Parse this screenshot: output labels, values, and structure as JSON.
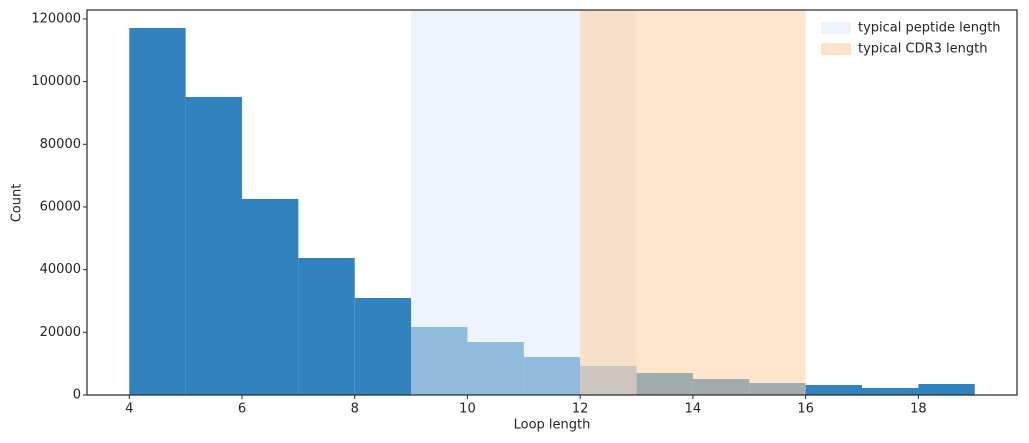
{
  "chart_data": {
    "type": "histogram",
    "xlabel": "Loop length",
    "ylabel": "Count",
    "bins": [
      4,
      5,
      6,
      7,
      8,
      9,
      10,
      11,
      12,
      13,
      14,
      15,
      16,
      17,
      18,
      19
    ],
    "values": [
      117100,
      95100,
      62560,
      43730,
      30960,
      21700,
      16900,
      12130,
      9260,
      7020,
      5100,
      3830,
      3190,
      2230,
      3510
    ],
    "color": "#3182bd",
    "spans": [
      {
        "name": "typical peptide length",
        "range": [
          9,
          13
        ],
        "color": "#deebf7"
      },
      {
        "name": "typical CDR3 length",
        "range": [
          12,
          16
        ],
        "color": "#fdd0a2"
      }
    ],
    "xlim": [
      3.25,
      19.75
    ],
    "ylim": [
      0,
      122850
    ],
    "xticks": [
      4,
      6,
      8,
      10,
      12,
      14,
      16,
      18
    ],
    "yticks": [
      0,
      20000,
      40000,
      60000,
      80000,
      100000,
      120000
    ],
    "grid": false,
    "legend": "upper right"
  }
}
